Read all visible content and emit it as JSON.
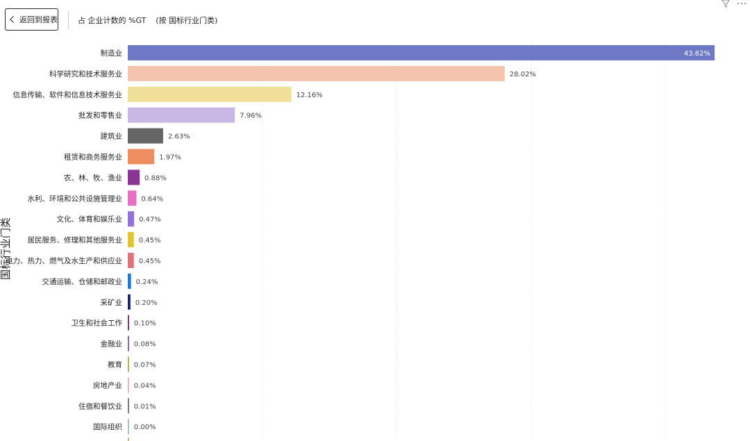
{
  "header": {
    "back_label": "返回到报表",
    "title_prefix": "占 企业计数的 %GT",
    "title_by": "(按 国标行业门类)"
  },
  "icons": [
    "chevron-left-icon",
    "filter-icon",
    "more-options-icon"
  ],
  "chart_data": {
    "type": "bar",
    "orientation": "horizontal",
    "ylabel": "国标行业门类",
    "xlim": [
      0,
      45
    ],
    "grid": "vertical dotted",
    "categories": [
      "制造业",
      "科学研究和技术服务业",
      "信息传输、软件和信息技术服务业",
      "批发和零售业",
      "建筑业",
      "租赁和商务服务业",
      "农、林、牧、渔业",
      "水利、环境和公共设施管理业",
      "文化、体育和娱乐业",
      "居民服务、修理和其他服务业",
      "电力、热力、燃气及水生产和供应业",
      "交通运输、仓储和邮政业",
      "采矿业",
      "卫生和社会工作",
      "金融业",
      "教育",
      "房地产业",
      "住宿和餐饮业",
      "国际组织"
    ],
    "values": [
      43.62,
      28.02,
      12.16,
      7.96,
      2.63,
      1.97,
      0.88,
      0.64,
      0.47,
      0.45,
      0.45,
      0.24,
      0.2,
      0.1,
      0.08,
      0.07,
      0.04,
      0.01,
      0.0
    ],
    "value_labels": [
      "43.62%",
      "28.02%",
      "12.16%",
      "7.96%",
      "2.63%",
      "1.97%",
      "0.88%",
      "0.64%",
      "0.47%",
      "0.45%",
      "0.45%",
      "0.24%",
      "0.20%",
      "0.10%",
      "0.08%",
      "0.07%",
      "0.04%",
      "0.01%",
      "0.00%"
    ],
    "colors": [
      "#6E78C5",
      "#F4C3AE",
      "#F0DF98",
      "#C9B8E6",
      "#666666",
      "#EE8E60",
      "#8A3596",
      "#E96FC2",
      "#9472D6",
      "#E2C338",
      "#E0737A",
      "#1F76D3",
      "#16256B",
      "#7A2F7D",
      "#8350A8",
      "#B5A640",
      "#E8A7C8",
      "#6B6B6B",
      "#9FBEC8"
    ]
  }
}
